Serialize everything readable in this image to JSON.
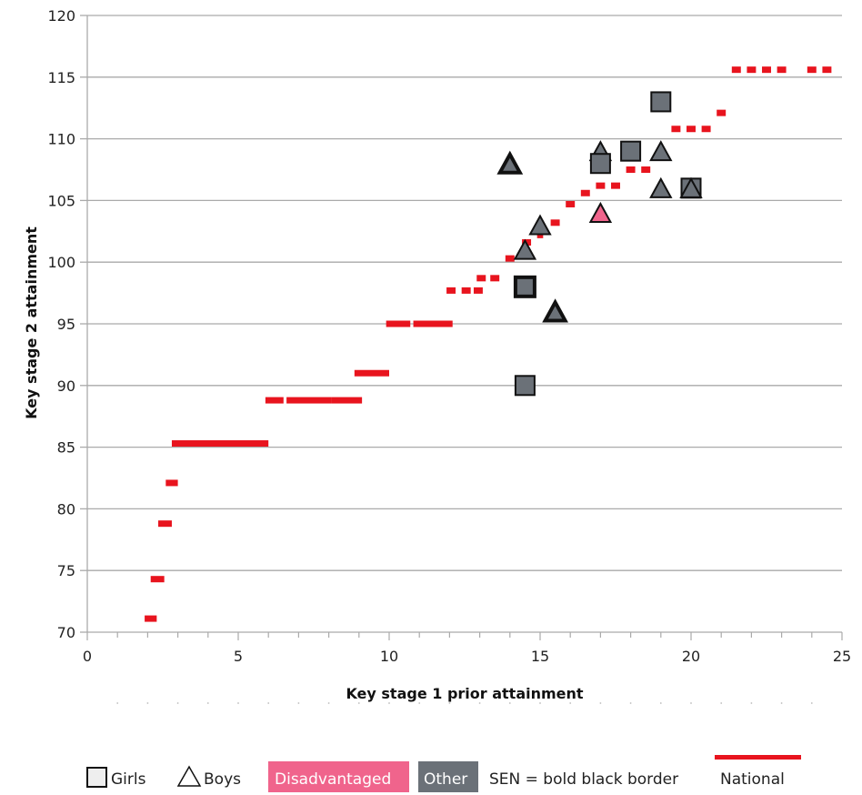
{
  "chart_data": {
    "type": "scatter",
    "xlabel": "Key stage 1 prior attainment",
    "ylabel": "Key stage 2 attainment",
    "xlim": [
      0,
      25
    ],
    "ylim": [
      70,
      120
    ],
    "x_ticks": [
      0,
      5,
      10,
      15,
      20,
      25
    ],
    "y_ticks": [
      70,
      75,
      80,
      85,
      90,
      95,
      100,
      105,
      110,
      115,
      120
    ],
    "grid": "horizontal",
    "legend_position": "bottom",
    "colors": {
      "disadvantaged": "#f0648c",
      "other": "#6b7178",
      "national": "#e8141e",
      "grid": "#aaaaaa"
    },
    "legend": {
      "girls": "Girls",
      "boys": "Boys",
      "disadvantaged": "Disadvantaged",
      "other": "Other",
      "sen": "SEN = bold black border",
      "national": "National"
    },
    "pupils": [
      {
        "x": 14.0,
        "y": 108,
        "shape": "triangle",
        "group": "other",
        "sen": true
      },
      {
        "x": 14.5,
        "y": 101,
        "shape": "triangle",
        "group": "other",
        "sen": false
      },
      {
        "x": 14.5,
        "y": 98,
        "shape": "square",
        "group": "other",
        "sen": true
      },
      {
        "x": 14.5,
        "y": 90,
        "shape": "square",
        "group": "other",
        "sen": false
      },
      {
        "x": 15.0,
        "y": 103,
        "shape": "triangle",
        "group": "other",
        "sen": false
      },
      {
        "x": 15.5,
        "y": 96,
        "shape": "triangle",
        "group": "other",
        "sen": true
      },
      {
        "x": 17.0,
        "y": 109,
        "shape": "triangle",
        "group": "other",
        "sen": false
      },
      {
        "x": 17.0,
        "y": 108,
        "shape": "square",
        "group": "other",
        "sen": false
      },
      {
        "x": 17.0,
        "y": 104,
        "shape": "triangle",
        "group": "disadvantaged",
        "sen": false
      },
      {
        "x": 18.0,
        "y": 109,
        "shape": "square",
        "group": "other",
        "sen": false
      },
      {
        "x": 19.0,
        "y": 113,
        "shape": "square",
        "group": "other",
        "sen": false
      },
      {
        "x": 19.0,
        "y": 109,
        "shape": "triangle",
        "group": "other",
        "sen": false
      },
      {
        "x": 19.0,
        "y": 106,
        "shape": "triangle",
        "group": "other",
        "sen": false
      },
      {
        "x": 20.0,
        "y": 106,
        "shape": "square",
        "group": "other",
        "sen": false
      },
      {
        "x": 20.0,
        "y": 106,
        "shape": "triangle",
        "group": "other",
        "sen": false
      }
    ],
    "national": [
      {
        "x": [
          1.9,
          2.3
        ],
        "y": 71.1
      },
      {
        "x": [
          2.1,
          2.55
        ],
        "y": 74.3
      },
      {
        "x": [
          2.35,
          2.8
        ],
        "y": 78.8
      },
      {
        "x": [
          2.6,
          3.0
        ],
        "y": 82.1
      },
      {
        "x": [
          2.8,
          6.0
        ],
        "y": 85.3
      },
      {
        "x": [
          5.9,
          6.5
        ],
        "y": 88.8
      },
      {
        "x": [
          6.6,
          8.1
        ],
        "y": 88.8
      },
      {
        "x": [
          8.1,
          9.1
        ],
        "y": 88.8
      },
      {
        "x": [
          8.85,
          10.0
        ],
        "y": 91.0
      },
      {
        "x": [
          9.9,
          10.7
        ],
        "y": 95.0
      },
      {
        "x": [
          10.8,
          12.1
        ],
        "y": 95.0
      },
      {
        "x": [
          11.9,
          12.2
        ],
        "y": 97.7
      },
      {
        "x": [
          12.4,
          12.7
        ],
        "y": 97.7
      },
      {
        "x": [
          12.8,
          13.1
        ],
        "y": 97.7
      },
      {
        "x": [
          12.9,
          13.2
        ],
        "y": 98.7
      },
      {
        "x": [
          13.35,
          13.65
        ],
        "y": 98.7
      },
      {
        "x": [
          13.85,
          14.15
        ],
        "y": 100.3
      },
      {
        "x": [
          14.4,
          14.7
        ],
        "y": 101.6
      },
      {
        "x": [
          14.9,
          15.1
        ],
        "y": 102.2
      },
      {
        "x": [
          15.35,
          15.65
        ],
        "y": 103.2
      },
      {
        "x": [
          15.85,
          16.15
        ],
        "y": 104.7
      },
      {
        "x": [
          16.35,
          16.65
        ],
        "y": 105.6
      },
      {
        "x": [
          16.85,
          17.15
        ],
        "y": 106.2
      },
      {
        "x": [
          17.35,
          17.65
        ],
        "y": 106.2
      },
      {
        "x": [
          17.85,
          18.15
        ],
        "y": 107.5
      },
      {
        "x": [
          18.35,
          18.65
        ],
        "y": 107.5
      },
      {
        "x": [
          18.85,
          19.15
        ],
        "y": 108.9
      },
      {
        "x": [
          19.35,
          19.65
        ],
        "y": 110.8
      },
      {
        "x": [
          19.85,
          20.15
        ],
        "y": 110.8
      },
      {
        "x": [
          20.35,
          20.65
        ],
        "y": 110.8
      },
      {
        "x": [
          20.85,
          21.15
        ],
        "y": 112.1
      },
      {
        "x": [
          21.35,
          21.65
        ],
        "y": 115.6
      },
      {
        "x": [
          21.85,
          22.15
        ],
        "y": 115.6
      },
      {
        "x": [
          22.35,
          22.65
        ],
        "y": 115.6
      },
      {
        "x": [
          22.85,
          23.15
        ],
        "y": 115.6
      },
      {
        "x": [
          23.85,
          24.15
        ],
        "y": 115.6
      },
      {
        "x": [
          24.35,
          24.65
        ],
        "y": 115.6
      }
    ]
  }
}
